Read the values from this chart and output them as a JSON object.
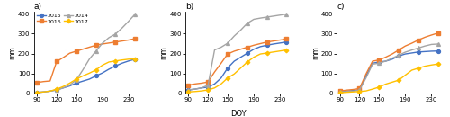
{
  "panels": [
    "a)",
    "b)",
    "c)"
  ],
  "xlabel": "DOY",
  "ylabel": "mm",
  "ylim": [
    0,
    410
  ],
  "yticks": [
    0,
    100,
    200,
    300,
    400
  ],
  "xticks": [
    90,
    120,
    150,
    190,
    230
  ],
  "series": {
    "a": {
      "2015": {
        "x": [
          90,
          100,
          110,
          120,
          130,
          140,
          150,
          160,
          170,
          180,
          190,
          200,
          210,
          220,
          230,
          240
        ],
        "y": [
          5,
          8,
          12,
          18,
          28,
          38,
          52,
          62,
          72,
          88,
          103,
          122,
          138,
          152,
          163,
          172
        ]
      },
      "2016": {
        "x": [
          90,
          100,
          110,
          120,
          130,
          140,
          150,
          160,
          170,
          180,
          190,
          200,
          210,
          220,
          230,
          240
        ],
        "y": [
          55,
          60,
          63,
          160,
          180,
          202,
          212,
          222,
          232,
          242,
          248,
          253,
          258,
          263,
          268,
          275
        ]
      },
      "2014": {
        "x": [
          90,
          100,
          110,
          120,
          130,
          140,
          150,
          160,
          170,
          180,
          190,
          200,
          210,
          220,
          230,
          240
        ],
        "y": [
          5,
          8,
          12,
          18,
          28,
          42,
          68,
          118,
          172,
          212,
          252,
          280,
          298,
          328,
          362,
          398
        ]
      },
      "2017": {
        "x": [
          90,
          100,
          110,
          120,
          130,
          140,
          150,
          160,
          170,
          180,
          190,
          200,
          210,
          220,
          230,
          240
        ],
        "y": [
          5,
          8,
          12,
          22,
          35,
          52,
          72,
          88,
          102,
          118,
          142,
          158,
          163,
          168,
          172,
          173
        ]
      }
    },
    "b": {
      "2015": {
        "x": [
          90,
          100,
          110,
          120,
          130,
          140,
          150,
          160,
          170,
          180,
          190,
          200,
          210,
          220,
          230,
          240
        ],
        "y": [
          18,
          22,
          28,
          32,
          48,
          78,
          128,
          162,
          182,
          202,
          222,
          235,
          242,
          248,
          253,
          258
        ]
      },
      "2016": {
        "x": [
          90,
          100,
          110,
          120,
          130,
          140,
          150,
          160,
          170,
          180,
          190,
          200,
          210,
          220,
          230,
          240
        ],
        "y": [
          42,
          48,
          52,
          58,
          108,
          152,
          198,
          212,
          222,
          232,
          242,
          250,
          258,
          263,
          268,
          273
        ]
      },
      "2014": {
        "x": [
          90,
          100,
          110,
          120,
          130,
          140,
          150,
          160,
          170,
          180,
          190,
          200,
          210,
          220,
          230,
          240
        ],
        "y": [
          18,
          22,
          28,
          42,
          218,
          232,
          252,
          288,
          318,
          352,
          372,
          378,
          383,
          388,
          393,
          398
        ]
      },
      "2017": {
        "x": [
          90,
          100,
          110,
          120,
          130,
          140,
          150,
          160,
          170,
          180,
          190,
          200,
          210,
          220,
          230,
          240
        ],
        "y": [
          8,
          10,
          13,
          18,
          28,
          48,
          78,
          98,
          128,
          158,
          182,
          198,
          203,
          208,
          213,
          218
        ]
      }
    },
    "c": {
      "2015": {
        "x": [
          90,
          100,
          110,
          120,
          130,
          140,
          150,
          160,
          170,
          180,
          190,
          200,
          210,
          220,
          230,
          240
        ],
        "y": [
          8,
          12,
          15,
          18,
          88,
          152,
          158,
          162,
          172,
          188,
          198,
          203,
          208,
          210,
          212,
          213
        ]
      },
      "2016": {
        "x": [
          90,
          100,
          110,
          120,
          130,
          140,
          150,
          160,
          170,
          180,
          190,
          200,
          210,
          220,
          230,
          240
        ],
        "y": [
          12,
          17,
          20,
          25,
          98,
          162,
          168,
          182,
          198,
          218,
          238,
          252,
          268,
          282,
          293,
          303
        ]
      },
      "2014": {
        "x": [
          90,
          100,
          110,
          120,
          130,
          140,
          150,
          160,
          170,
          180,
          190,
          200,
          210,
          220,
          230,
          240
        ],
        "y": [
          8,
          10,
          12,
          17,
          78,
          147,
          152,
          162,
          177,
          192,
          207,
          218,
          228,
          238,
          246,
          248
        ]
      },
      "2017": {
        "x": [
          90,
          100,
          110,
          120,
          130,
          140,
          150,
          160,
          170,
          180,
          190,
          200,
          210,
          220,
          230,
          240
        ],
        "y": [
          4,
          6,
          8,
          10,
          13,
          22,
          32,
          47,
          57,
          67,
          92,
          117,
          127,
          137,
          143,
          148
        ]
      }
    }
  },
  "series_styles": {
    "2015": {
      "color": "#4472c4",
      "marker": "o",
      "markersize": 2.8,
      "linewidth": 1.0
    },
    "2016": {
      "color": "#ed7d31",
      "marker": "s",
      "markersize": 2.8,
      "linewidth": 1.0
    },
    "2014": {
      "color": "#a5a5a5",
      "marker": "^",
      "markersize": 2.8,
      "linewidth": 1.0
    },
    "2017": {
      "color": "#ffc000",
      "marker": "D",
      "markersize": 2.3,
      "linewidth": 1.0
    }
  },
  "legend_order": [
    "2015",
    "2016",
    "2014",
    "2017"
  ],
  "bg_color": "#ffffff",
  "spine_color": "#000000"
}
